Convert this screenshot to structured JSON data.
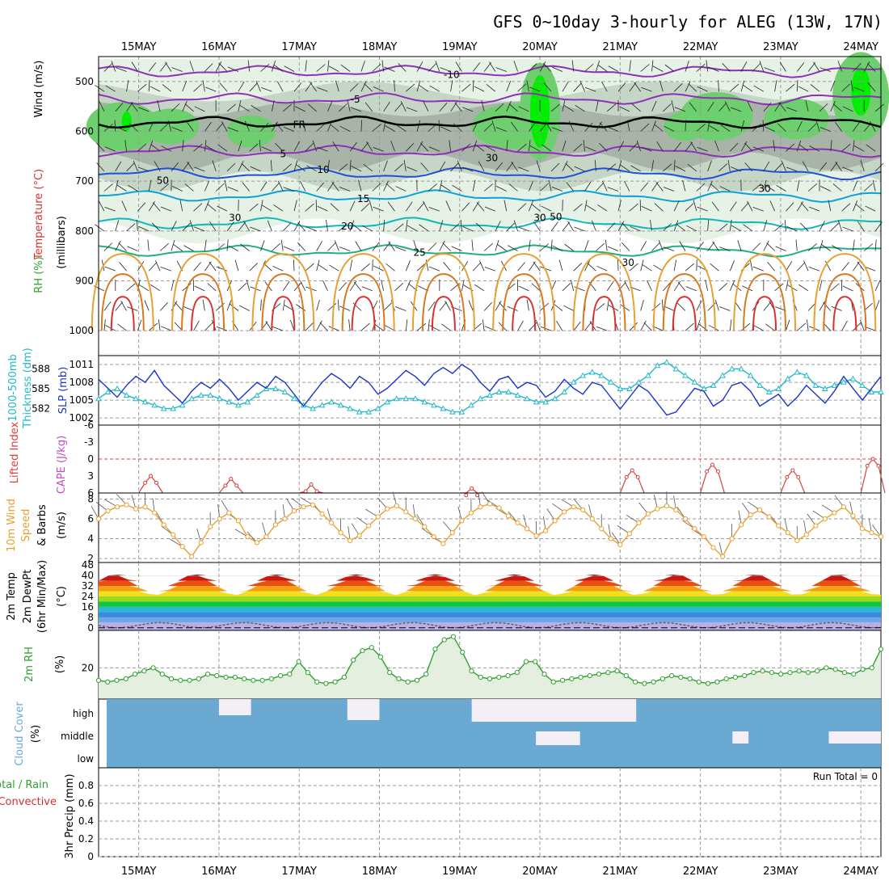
{
  "chart_data": {
    "type": "line",
    "title": "GFS 0~10day 3-hourly for ALEG (13W, 17N)",
    "dates": [
      "15MAY",
      "16MAY",
      "17MAY",
      "18MAY",
      "19MAY",
      "20MAY",
      "21MAY",
      "22MAY",
      "23MAY",
      "24MAY"
    ],
    "time_axis": {
      "start_day": -0.5,
      "end_day": 9.25,
      "step_hours": 3
    },
    "colors": {
      "rh_light": "#e6f2e6",
      "rh_mid": "#c6d6c6",
      "rh_dark": "#a8b4a8",
      "rh_green": "#6ecf6e",
      "rh_bright": "#00ee00",
      "sea_level": "#1c34c8",
      "thickness": "#22b8c8",
      "lifted_index": "#d84040",
      "wind10": "#e8a030",
      "barb": "#222222",
      "rh2m": "#30a030",
      "cloud": "#6aaad2",
      "cloud_clear": "#f4eef6"
    },
    "panels": {
      "upper": {
        "ylabels": [
          "Wind (m/s)",
          "Temperature (°C)",
          "RH (%)",
          "(millibars)"
        ],
        "pressure_ticks": [
          500,
          600,
          700,
          800,
          900,
          1000
        ],
        "temperature_contours": [
          {
            "label": "-10",
            "color": "#9030b8",
            "p": 480
          },
          {
            "label": "-5",
            "color": "#9030b8",
            "p": 535
          },
          {
            "label": "FR",
            "color": "#000000",
            "p": 582
          },
          {
            "label": "5",
            "color": "#9030b8",
            "p": 640
          },
          {
            "label": "10",
            "color": "#2050d8",
            "p": 685
          },
          {
            "label": "15",
            "color": "#10a0d8",
            "p": 730
          },
          {
            "label": "20",
            "color": "#10b8b8",
            "p": 785
          },
          {
            "label": "25",
            "color": "#20b080",
            "p": 840
          }
        ],
        "rh_labels": [
          "50",
          "30",
          "30",
          "50",
          "30",
          "30"
        ],
        "warm_contours": [
          "30"
        ]
      },
      "pressure": {
        "ylabels": [
          "SLP (mb)",
          "1000-500mb",
          "Thickness (dm)"
        ],
        "slp_ticks": [
          1002,
          1005,
          1008,
          1011
        ],
        "thickness_ticks": [
          582,
          585,
          588
        ],
        "slp": [
          1008.5,
          1007,
          1005.5,
          1007.5,
          1009,
          1008,
          1010,
          1007.5,
          1006,
          1004.5,
          1006.5,
          1008,
          1007,
          1008.5,
          1007,
          1005,
          1006.5,
          1008,
          1007,
          1009,
          1008,
          1006,
          1004,
          1006,
          1008,
          1009.5,
          1008.5,
          1007,
          1009,
          1008,
          1006,
          1007,
          1008.5,
          1010,
          1009,
          1007.5,
          1009.5,
          1010.5,
          1009.5,
          1011,
          1010,
          1008,
          1006.5,
          1008.5,
          1009,
          1007,
          1008,
          1007.5,
          1005.5,
          1006.5,
          1008.5,
          1007,
          1006,
          1008,
          1007.5,
          1005.5,
          1003.5,
          1005.5,
          1007.5,
          1006.5,
          1004.5,
          1002.5,
          1003,
          1005,
          1007,
          1006.5,
          1004,
          1005,
          1007.5,
          1008,
          1006.5,
          1004,
          1005,
          1006,
          1004,
          1005.5,
          1007.5,
          1006,
          1004.5,
          1006.5,
          1009,
          1007,
          1005,
          1007,
          1009
        ],
        "thickness": [
          583.5,
          584.5,
          585,
          584,
          583.5,
          583,
          582.5,
          582,
          582,
          582.5,
          583.5,
          584,
          584,
          583.5,
          583,
          582.5,
          583,
          584,
          585,
          585,
          584.5,
          583.5,
          582.5,
          582,
          582.5,
          583,
          582.5,
          582,
          581.5,
          581.5,
          582,
          583,
          583.5,
          583.5,
          583.5,
          583,
          582.5,
          582,
          581.5,
          581.5,
          582.5,
          583.5,
          584,
          584.5,
          584.5,
          584,
          583.5,
          583,
          583,
          583.5,
          584.5,
          586,
          587,
          587.5,
          587,
          586,
          585,
          585,
          586,
          587,
          588.5,
          589,
          588,
          587,
          586,
          585,
          585.5,
          587,
          588,
          588,
          587,
          585.5,
          584.5,
          585,
          586.5,
          587.5,
          587,
          585.5,
          585,
          585.5,
          586,
          586.5,
          585.5,
          584.5,
          584.5
        ]
      },
      "lifted": {
        "ylabels": [
          "Lifted Index",
          "CAPE (J/kg)"
        ],
        "ticks": [
          "-6",
          "-3",
          "0",
          "3",
          "6"
        ],
        "peaks": [
          {
            "t": 0.15,
            "v": 3
          },
          {
            "t": 1.15,
            "v": 3.5
          },
          {
            "t": 2.15,
            "v": 4.5
          },
          {
            "t": 4.15,
            "v": 5.2
          },
          {
            "t": 6.15,
            "v": 2
          },
          {
            "t": 7.15,
            "v": 1
          },
          {
            "t": 8.15,
            "v": 2
          },
          {
            "t": 9.15,
            "v": 0
          }
        ]
      },
      "wind10m": {
        "ylabels": [
          "10m Wind",
          "Speed",
          "& Barbs",
          "(m/s)"
        ],
        "ticks": [
          2,
          4,
          6,
          8
        ],
        "speed": [
          6,
          6.8,
          7.2,
          7.4,
          7,
          7.2,
          6.6,
          5.4,
          4.4,
          3.2,
          2.2,
          3.6,
          5.2,
          6,
          6.6,
          5.8,
          4.2,
          3.6,
          4.2,
          5.4,
          6,
          6.8,
          7.2,
          7.4,
          6.5,
          5.6,
          4.6,
          3.8,
          4.3,
          5.3,
          6.2,
          7,
          7.3,
          6.7,
          6,
          5.2,
          4.2,
          3.5,
          4.6,
          5.8,
          6.6,
          7.2,
          7.5,
          7.1,
          6.3,
          5.6,
          5,
          4.3,
          4.8,
          5.8,
          6.7,
          7.2,
          6.9,
          6,
          5,
          4,
          3.4,
          4.5,
          5.6,
          6.5,
          7,
          7.3,
          6.9,
          6,
          5,
          4.2,
          3.1,
          2.2,
          4,
          5.4,
          6.4,
          6.9,
          6.2,
          5.3,
          4.6,
          3.8,
          4.4,
          5.3,
          6,
          6.6,
          7.2,
          6.3,
          5,
          4.6,
          4.2
        ]
      },
      "temp2m": {
        "ylabels": [
          "2m Temp",
          "2m DewPt",
          "(6hr Min/Max)",
          "(°C)"
        ],
        "ticks": [
          0,
          8,
          16,
          24,
          32,
          40,
          48
        ]
      },
      "rh2m": {
        "ylabels": [
          "2m RH",
          "(%)"
        ],
        "ticks": [
          20
        ],
        "values": [
          12,
          11,
          12,
          13,
          16,
          18,
          20,
          16,
          13,
          12,
          12,
          13,
          16,
          15,
          14,
          14,
          13,
          12,
          12,
          13,
          15,
          16,
          24,
          17,
          11,
          10,
          11,
          14,
          25,
          31,
          33,
          27,
          17,
          13,
          11,
          12,
          16,
          32,
          38,
          40,
          30,
          18,
          14,
          13,
          14,
          15,
          17,
          24,
          24,
          16,
          11,
          12,
          13,
          14,
          15,
          16,
          17,
          18,
          15,
          11,
          10,
          11,
          13,
          15,
          14,
          13,
          11,
          10,
          11,
          13,
          14,
          15,
          17,
          18,
          17,
          16,
          17,
          18,
          17,
          18,
          20,
          19,
          17,
          16,
          19,
          20,
          32
        ]
      },
      "cloud": {
        "ylabels": [
          "Cloud Cover",
          "(%)"
        ],
        "labels": [
          "high",
          "middle",
          "low"
        ]
      },
      "precip": {
        "ylabels": [
          "3hr Precip (mm)",
          "Total / Rain",
          "Convective"
        ],
        "ticks": [
          "0",
          "0.2",
          "0.4",
          "0.6",
          "0.8"
        ],
        "run_total_label": "Run Total = 0"
      }
    }
  }
}
